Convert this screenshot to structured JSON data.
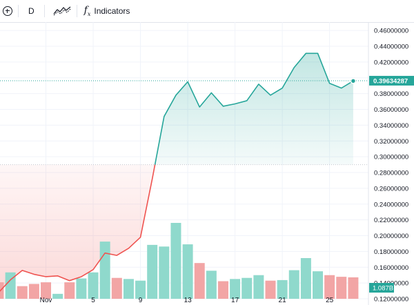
{
  "toolbar": {
    "add_icon": "plus-circle-icon",
    "interval_label": "D",
    "compare_icon": "compare-icon",
    "indicators_icon": "fx-icon",
    "indicators_label": "Indicators"
  },
  "chart_data": {
    "type": "area",
    "chart_style": "baseline",
    "baseline_value": 0.29,
    "ylim": [
      0.12,
      0.468
    ],
    "y_ticks": [
      "0.46000000",
      "0.44000000",
      "0.42000000",
      "0.40000000",
      "0.38000000",
      "0.36000000",
      "0.34000000",
      "0.32000000",
      "0.30000000",
      "0.28000000",
      "0.26000000",
      "0.24000000",
      "0.22000000",
      "0.20000000",
      "0.18000000",
      "0.16000000",
      "0.14000000",
      "0.12000000"
    ],
    "x_ticks": [
      "Nov",
      "5",
      "9",
      "13",
      "17",
      "21",
      "25"
    ],
    "last_price_label": "0.39634287",
    "volume_label": "1.087B",
    "colors": {
      "up": "#26a69a",
      "down": "#ef5350",
      "up_volume": "#8fd9cc",
      "down_volume": "#f2a5a5",
      "grid": "#f0f3fa"
    },
    "price_series": {
      "x": [
        "Oct 28",
        "Oct 29",
        "Oct 30",
        "Oct 31",
        "Nov 1",
        "Nov 2",
        "Nov 3",
        "Nov 4",
        "Nov 5",
        "Nov 6",
        "Nov 7",
        "Nov 8",
        "Nov 9",
        "Nov 10",
        "Nov 11",
        "Nov 12",
        "Nov 13",
        "Nov 14",
        "Nov 15",
        "Nov 16",
        "Nov 17",
        "Nov 18",
        "Nov 19",
        "Nov 20",
        "Nov 21",
        "Nov 22",
        "Nov 23",
        "Nov 24",
        "Nov 25",
        "Nov 26",
        "Nov 27"
      ],
      "values": [
        0.128,
        0.144,
        0.156,
        0.151,
        0.148,
        0.149,
        0.143,
        0.148,
        0.157,
        0.178,
        0.175,
        0.184,
        0.198,
        0.272,
        0.351,
        0.378,
        0.395,
        0.363,
        0.381,
        0.364,
        0.367,
        0.371,
        0.392,
        0.378,
        0.387,
        0.413,
        0.431,
        0.431,
        0.393,
        0.387,
        0.396
      ]
    },
    "volume_series": {
      "values": [
        0.3,
        0.48,
        0.23,
        0.27,
        0.3,
        0.09,
        0.3,
        0.37,
        0.48,
        1.04,
        0.38,
        0.36,
        0.33,
        0.98,
        0.95,
        1.38,
        0.99,
        0.65,
        0.51,
        0.32,
        0.36,
        0.38,
        0.43,
        0.33,
        0.34,
        0.52,
        0.74,
        0.5,
        0.43,
        0.4,
        0.39
      ],
      "colors": [
        "down",
        "up",
        "down",
        "down",
        "down",
        "up",
        "down",
        "up",
        "up",
        "up",
        "down",
        "up",
        "up",
        "up",
        "up",
        "up",
        "up",
        "down",
        "up",
        "down",
        "up",
        "up",
        "up",
        "down",
        "up",
        "up",
        "up",
        "up",
        "down",
        "down",
        "down"
      ]
    }
  }
}
